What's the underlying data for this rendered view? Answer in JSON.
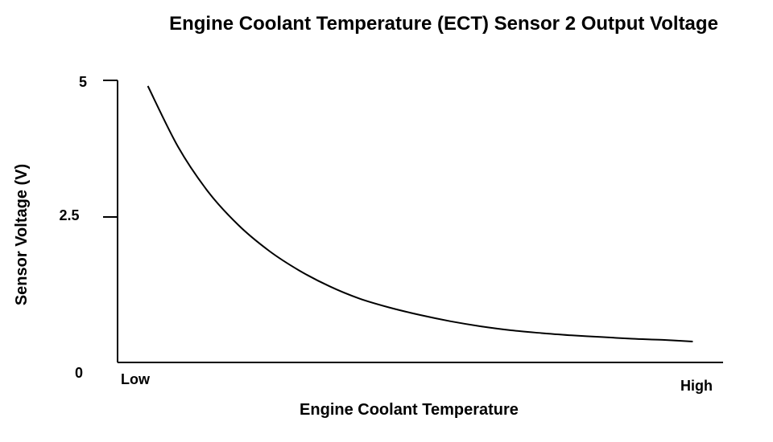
{
  "chart_data": {
    "type": "line",
    "title": "Engine Coolant Temperature (ECT) Sensor 2 Output Voltage",
    "xlabel": "Engine Coolant Temperature",
    "ylabel": "Sensor Voltage (V)",
    "y_ticks": [
      "5",
      "2.5",
      "0"
    ],
    "y_tick_values": [
      5,
      2.5,
      0
    ],
    "x_tick_labels": {
      "low": "Low",
      "high": "High"
    },
    "ylim": [
      0,
      5
    ],
    "xlim": [
      0,
      1
    ],
    "grid": false,
    "series": [
      {
        "x": [
          0.05,
          0.1,
          0.15,
          0.2,
          0.25,
          0.3,
          0.35,
          0.4,
          0.45,
          0.5,
          0.55,
          0.6,
          0.65,
          0.7,
          0.75,
          0.8,
          0.85,
          0.9,
          0.95
        ],
        "values": [
          4.9,
          3.82,
          3.02,
          2.43,
          1.98,
          1.63,
          1.35,
          1.13,
          0.97,
          0.84,
          0.73,
          0.64,
          0.57,
          0.52,
          0.48,
          0.45,
          0.42,
          0.4,
          0.37
        ]
      }
    ],
    "line_color": "#000000"
  }
}
